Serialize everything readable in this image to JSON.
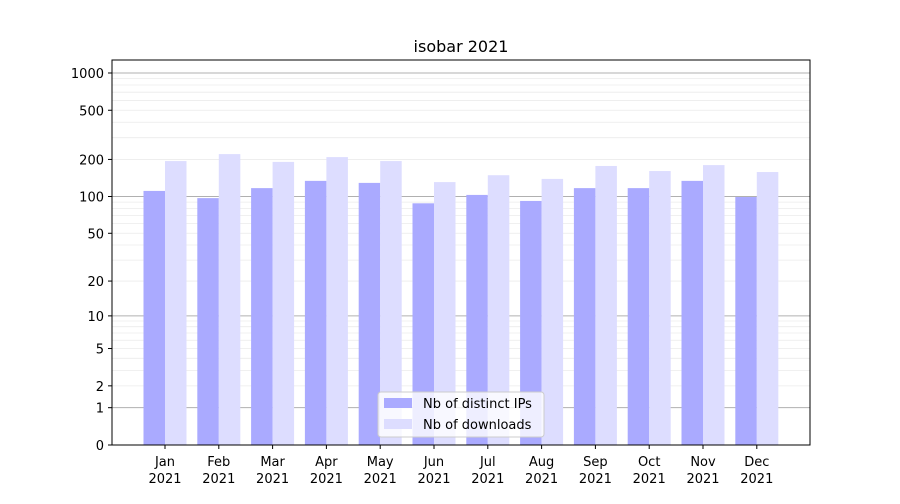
{
  "chart_data": {
    "type": "bar",
    "title": "isobar 2021",
    "xlabel": "",
    "ylabel": "",
    "yscale": "log(1+y)",
    "ylim": [
      0,
      1273
    ],
    "yticks": [
      0,
      1,
      2,
      5,
      10,
      20,
      50,
      100,
      200,
      500,
      1000
    ],
    "grid": true,
    "legend_position": "bottom-center",
    "categories": [
      "Jan\n2021",
      "Feb\n2021",
      "Mar\n2021",
      "Apr\n2021",
      "May\n2021",
      "Jun\n2021",
      "Jul\n2021",
      "Aug\n2021",
      "Sep\n2021",
      "Oct\n2021",
      "Nov\n2021",
      "Dec\n2021"
    ],
    "series": [
      {
        "name": "Nb of distinct IPs",
        "color": "#aaaaff",
        "values": [
          111,
          97,
          117,
          134,
          129,
          88,
          103,
          92,
          117,
          117,
          134,
          99
        ]
      },
      {
        "name": "Nb of downloads",
        "color": "#ddddff",
        "values": [
          194,
          221,
          191,
          209,
          194,
          131,
          149,
          139,
          177,
          161,
          180,
          158
        ]
      }
    ]
  }
}
